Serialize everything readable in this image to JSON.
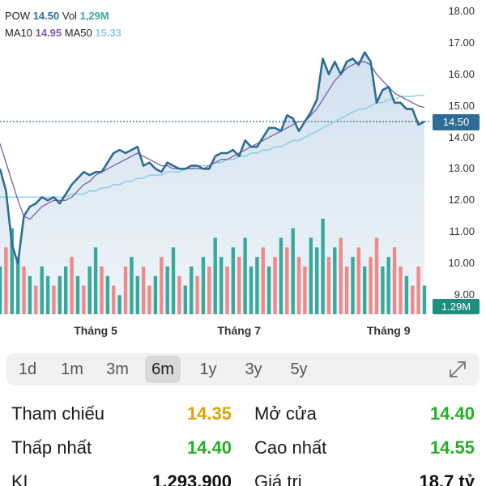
{
  "legend": {
    "symbol": "POW",
    "price": "14.50",
    "vol_label": "Vol",
    "vol": "1,29M",
    "ma10_label": "MA10",
    "ma10": "14.95",
    "ma50_label": "MA50",
    "ma50": "15.33"
  },
  "colors": {
    "price_line": "#2f6c93",
    "area_fill": "#cfe0ee",
    "ma10": "#7b5ea7",
    "ma50": "#8ccde8",
    "vol_up": "#3aa89b",
    "vol_down": "#ef8a8a",
    "ref_line": "#2f6c93"
  },
  "price_badge": "14.50",
  "volume_badge": "1.29M",
  "chart_data": {
    "type": "line",
    "ylim": [
      8.7,
      18.0
    ],
    "y_ticks": [
      "18.00",
      "17.00",
      "16.00",
      "15.00",
      "14.00",
      "13.00",
      "12.00",
      "11.00",
      "10.00",
      "9.00"
    ],
    "y_tick_values": [
      18,
      17,
      16,
      15,
      14,
      13,
      12,
      11,
      10,
      9
    ],
    "x_ticks": [
      "Tháng 5",
      "Tháng 7",
      "Tháng 9"
    ],
    "x_tick_index": [
      16,
      40,
      65
    ],
    "current_price": 14.5,
    "series": [
      {
        "name": "POW",
        "values": [
          13.0,
          12.3,
          10.6,
          10.0,
          11.5,
          11.8,
          11.9,
          12.1,
          12.0,
          12.1,
          11.9,
          12.2,
          12.5,
          12.7,
          12.9,
          12.8,
          12.9,
          12.9,
          13.2,
          13.5,
          13.6,
          13.5,
          13.6,
          13.7,
          13.1,
          13.2,
          13.0,
          12.9,
          13.2,
          13.1,
          13.0,
          13.0,
          13.1,
          13.1,
          13.0,
          13.0,
          13.4,
          13.5,
          13.5,
          13.6,
          13.4,
          13.9,
          13.7,
          13.7,
          14.0,
          14.3,
          14.3,
          14.2,
          14.7,
          14.6,
          14.2,
          14.5,
          14.8,
          15.2,
          16.5,
          16.0,
          16.4,
          16.0,
          16.4,
          16.5,
          16.3,
          16.7,
          16.4,
          15.1,
          15.5,
          15.6,
          15.1,
          15.1,
          14.9,
          14.9,
          14.4,
          14.5
        ],
        "color": "#2f6c93"
      },
      {
        "name": "MA10",
        "values": [
          13.8,
          13.2,
          12.6,
          12.0,
          11.5,
          11.4,
          11.6,
          11.8,
          11.9,
          12.0,
          12.0,
          12.0,
          12.1,
          12.3,
          12.5,
          12.6,
          12.8,
          12.9,
          13.0,
          13.1,
          13.2,
          13.3,
          13.4,
          13.5,
          13.4,
          13.3,
          13.2,
          13.1,
          13.1,
          13.0,
          13.0,
          13.0,
          13.0,
          13.0,
          13.0,
          13.1,
          13.2,
          13.3,
          13.3,
          13.4,
          13.5,
          13.6,
          13.7,
          13.8,
          13.9,
          14.0,
          14.1,
          14.2,
          14.3,
          14.4,
          14.5,
          14.5,
          14.7,
          14.9,
          15.2,
          15.5,
          15.8,
          16.0,
          16.2,
          16.3,
          16.4,
          16.4,
          16.3,
          16.0,
          15.8,
          15.6,
          15.4,
          15.3,
          15.2,
          15.1,
          15.0,
          14.95
        ],
        "color": "#7b5ea7"
      },
      {
        "name": "MA50",
        "values": [
          12.1,
          12.1,
          12.1,
          12.1,
          12.1,
          12.1,
          12.1,
          12.1,
          12.1,
          12.1,
          12.1,
          12.1,
          12.2,
          12.2,
          12.2,
          12.3,
          12.3,
          12.4,
          12.4,
          12.5,
          12.5,
          12.6,
          12.6,
          12.7,
          12.7,
          12.8,
          12.8,
          12.8,
          12.9,
          12.9,
          12.9,
          13.0,
          13.0,
          13.1,
          13.1,
          13.1,
          13.2,
          13.2,
          13.3,
          13.3,
          13.4,
          13.4,
          13.5,
          13.5,
          13.6,
          13.6,
          13.7,
          13.7,
          13.8,
          13.9,
          13.9,
          14.0,
          14.1,
          14.2,
          14.3,
          14.4,
          14.5,
          14.6,
          14.7,
          14.8,
          14.9,
          14.9,
          15.0,
          15.1,
          15.1,
          15.2,
          15.2,
          15.3,
          15.3,
          15.3,
          15.33,
          15.33
        ],
        "color": "#8ccde8"
      }
    ],
    "volume": {
      "max": 10,
      "values": [
        5,
        7,
        9,
        6,
        5,
        4,
        3,
        5,
        4,
        3,
        4,
        5,
        6,
        4,
        3,
        5,
        7,
        5,
        4,
        3,
        2,
        5,
        6,
        4,
        5,
        3,
        4,
        6,
        5,
        7,
        4,
        3,
        5,
        4,
        6,
        5,
        8,
        6,
        5,
        7,
        6,
        8,
        5,
        6,
        7,
        5,
        6,
        8,
        7,
        9,
        6,
        5,
        8,
        7,
        10,
        6,
        7,
        8,
        5,
        6,
        7,
        5,
        6,
        8,
        5,
        6,
        7,
        5,
        4,
        3,
        5,
        3
      ],
      "up": [
        true,
        false,
        true,
        true,
        false,
        true,
        false,
        true,
        true,
        false,
        true,
        true,
        false,
        true,
        false,
        true,
        true,
        false,
        true,
        false,
        true,
        false,
        true,
        true,
        false,
        false,
        true,
        false,
        true,
        true,
        false,
        true,
        true,
        false,
        true,
        false,
        true,
        true,
        false,
        true,
        false,
        true,
        true,
        true,
        false,
        true,
        false,
        true,
        false,
        true,
        false,
        false,
        true,
        true,
        true,
        false,
        true,
        false,
        false,
        true,
        false,
        true,
        false,
        false,
        true,
        true,
        false,
        false,
        true,
        false,
        false,
        true
      ]
    }
  },
  "range_tabs": [
    "1d",
    "1m",
    "3m",
    "6m",
    "1y",
    "3y",
    "5y"
  ],
  "active_tab": "6m",
  "stats": {
    "ref_label": "Tham chiếu",
    "ref_value": "14.35",
    "open_label": "Mở cửa",
    "open_value": "14.40",
    "low_label": "Thấp nhất",
    "low_value": "14.40",
    "high_label": "Cao nhất",
    "high_value": "14.55",
    "kl_label": "KL",
    "kl_value": "1,293,900",
    "gt_label": "Giá trị",
    "gt_value": "18.7 tỷ"
  }
}
